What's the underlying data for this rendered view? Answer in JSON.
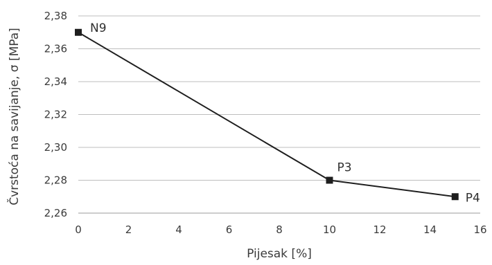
{
  "chart_data": {
    "type": "line",
    "xlabel": "Pijesak [%]",
    "ylabel": "Čvrstoća na savijanje, σ [MPa]",
    "xlim": [
      0,
      16
    ],
    "ylim": [
      2.26,
      2.38
    ],
    "x_ticks": [
      0,
      2,
      4,
      6,
      8,
      10,
      12,
      14,
      16
    ],
    "y_ticks": [
      "2,26",
      "2,28",
      "2,30",
      "2,32",
      "2,34",
      "2,36",
      "2,38"
    ],
    "grid": "horizontal",
    "series": [
      {
        "points": [
          {
            "x": 0,
            "y": 2.37,
            "label": "N9"
          },
          {
            "x": 10,
            "y": 2.28,
            "label": "P3"
          },
          {
            "x": 15,
            "y": 2.27,
            "label": "P4"
          }
        ]
      }
    ],
    "colors": {
      "line": "#1e1e1e",
      "grid": "#bdbdbd"
    }
  }
}
